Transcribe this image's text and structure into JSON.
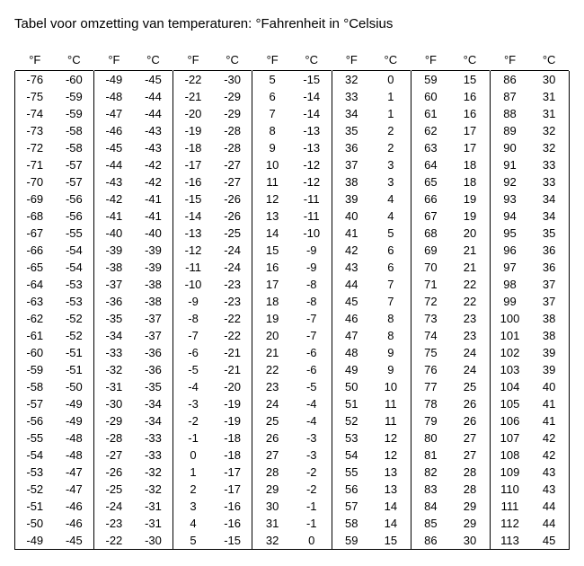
{
  "title": "Tabel voor omzetting van temperaturen: °Fahrenheit in °Celsius",
  "table": {
    "type": "table",
    "column_pairs": 7,
    "header_pair": [
      "°F",
      "°C"
    ],
    "background_color": "#ffffff",
    "text_color": "#000000",
    "border_color": "#000000",
    "font_size_pt": 10,
    "title_font_size_pt": 11,
    "row_count": 28,
    "data": [
      [
        -76,
        -60,
        -49,
        -45,
        -22,
        -30,
        5,
        -15,
        32,
        0,
        59,
        15,
        86,
        30
      ],
      [
        -75,
        -59,
        -48,
        -44,
        -21,
        -29,
        6,
        -14,
        33,
        1,
        60,
        16,
        87,
        31
      ],
      [
        -74,
        -59,
        -47,
        -44,
        -20,
        -29,
        7,
        -14,
        34,
        1,
        61,
        16,
        88,
        31
      ],
      [
        -73,
        -58,
        -46,
        -43,
        -19,
        -28,
        8,
        -13,
        35,
        2,
        62,
        17,
        89,
        32
      ],
      [
        -72,
        -58,
        -45,
        -43,
        -18,
        -28,
        9,
        -13,
        36,
        2,
        63,
        17,
        90,
        32
      ],
      [
        -71,
        -57,
        -44,
        -42,
        -17,
        -27,
        10,
        -12,
        37,
        3,
        64,
        18,
        91,
        33
      ],
      [
        -70,
        -57,
        -43,
        -42,
        -16,
        -27,
        11,
        -12,
        38,
        3,
        65,
        18,
        92,
        33
      ],
      [
        -69,
        -56,
        -42,
        -41,
        -15,
        -26,
        12,
        -11,
        39,
        4,
        66,
        19,
        93,
        34
      ],
      [
        -68,
        -56,
        -41,
        -41,
        -14,
        -26,
        13,
        -11,
        40,
        4,
        67,
        19,
        94,
        34
      ],
      [
        -67,
        -55,
        -40,
        -40,
        -13,
        -25,
        14,
        -10,
        41,
        5,
        68,
        20,
        95,
        35
      ],
      [
        -66,
        -54,
        -39,
        -39,
        -12,
        -24,
        15,
        -9,
        42,
        6,
        69,
        21,
        96,
        36
      ],
      [
        -65,
        -54,
        -38,
        -39,
        -11,
        -24,
        16,
        -9,
        43,
        6,
        70,
        21,
        97,
        36
      ],
      [
        -64,
        -53,
        -37,
        -38,
        -10,
        -23,
        17,
        -8,
        44,
        7,
        71,
        22,
        98,
        37
      ],
      [
        -63,
        -53,
        -36,
        -38,
        -9,
        -23,
        18,
        -8,
        45,
        7,
        72,
        22,
        99,
        37
      ],
      [
        -62,
        -52,
        -35,
        -37,
        -8,
        -22,
        19,
        -7,
        46,
        8,
        73,
        23,
        100,
        38
      ],
      [
        -61,
        -52,
        -34,
        -37,
        -7,
        -22,
        20,
        -7,
        47,
        8,
        74,
        23,
        101,
        38
      ],
      [
        -60,
        -51,
        -33,
        -36,
        -6,
        -21,
        21,
        -6,
        48,
        9,
        75,
        24,
        102,
        39
      ],
      [
        -59,
        -51,
        -32,
        -36,
        -5,
        -21,
        22,
        -6,
        49,
        9,
        76,
        24,
        103,
        39
      ],
      [
        -58,
        -50,
        -31,
        -35,
        -4,
        -20,
        23,
        -5,
        50,
        10,
        77,
        25,
        104,
        40
      ],
      [
        -57,
        -49,
        -30,
        -34,
        -3,
        -19,
        24,
        -4,
        51,
        11,
        78,
        26,
        105,
        41
      ],
      [
        -56,
        -49,
        -29,
        -34,
        -2,
        -19,
        25,
        -4,
        52,
        11,
        79,
        26,
        106,
        41
      ],
      [
        -55,
        -48,
        -28,
        -33,
        -1,
        -18,
        26,
        -3,
        53,
        12,
        80,
        27,
        107,
        42
      ],
      [
        -54,
        -48,
        -27,
        -33,
        0,
        -18,
        27,
        -3,
        54,
        12,
        81,
        27,
        108,
        42
      ],
      [
        -53,
        -47,
        -26,
        -32,
        1,
        -17,
        28,
        -2,
        55,
        13,
        82,
        28,
        109,
        43
      ],
      [
        -52,
        -47,
        -25,
        -32,
        2,
        -17,
        29,
        -2,
        56,
        13,
        83,
        28,
        110,
        43
      ],
      [
        -51,
        -46,
        -24,
        -31,
        3,
        -16,
        30,
        -1,
        57,
        14,
        84,
        29,
        111,
        44
      ],
      [
        -50,
        -46,
        -23,
        -31,
        4,
        -16,
        31,
        -1,
        58,
        14,
        85,
        29,
        112,
        44
      ],
      [
        -49,
        -45,
        -22,
        -30,
        5,
        -15,
        32,
        0,
        59,
        15,
        86,
        30,
        113,
        45
      ]
    ]
  }
}
